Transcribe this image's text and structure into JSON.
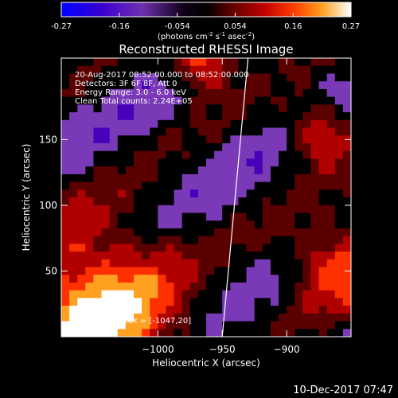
{
  "colorbar": {
    "min_label": "-0.27",
    "tick_labels": [
      "-0.27",
      "-0.16",
      "-0.054",
      "0.054",
      "0.16",
      "0.27"
    ],
    "units_label": "(photons cm",
    "units_exp1": "-2",
    "units_mid": " s",
    "units_exp2": "-1",
    "units_end": " asec",
    "units_exp3": "-2",
    "units_close": ")",
    "colors": [
      "#0000ff",
      "#4a00b8",
      "#7a3ab8",
      "#000000",
      "#5a0000",
      "#b00000",
      "#ff3000",
      "#ffa020",
      "#ffffff"
    ]
  },
  "chart_data": {
    "type": "heatmap",
    "title": "Reconstructed RHESSI Image",
    "xlabel": "Heliocentric X (arcsec)",
    "ylabel": "Heliocentric Y (arcsec)",
    "xlim": [
      -1075,
      -850
    ],
    "ylim": [
      0,
      212
    ],
    "xticks": [
      -1000,
      -950,
      -900
    ],
    "xtick_labels": [
      "−1000",
      "−950",
      "−900"
    ],
    "yticks": [
      50,
      100,
      150
    ],
    "ytick_labels": [
      "50",
      "100",
      "150"
    ],
    "color_range": [
      -0.27,
      0.27
    ],
    "limb_line": [
      [
        -950,
        0
      ],
      [
        -930,
        212
      ]
    ],
    "annotations": [
      "20-Aug-2017 08:52:00.000 to 08:52:00.000",
      "Detectors: 3F 6F 8F, Att 0",
      "Energy Range: 3.0 - 6.0 keV",
      "Clean    Total counts: 2.24E+05"
    ],
    "peak_label": "Position of Peak = [-1047,20]",
    "peak_position": [
      -1047,
      20
    ]
  },
  "footer_timestamp": "10-Dec-2017 07:47"
}
